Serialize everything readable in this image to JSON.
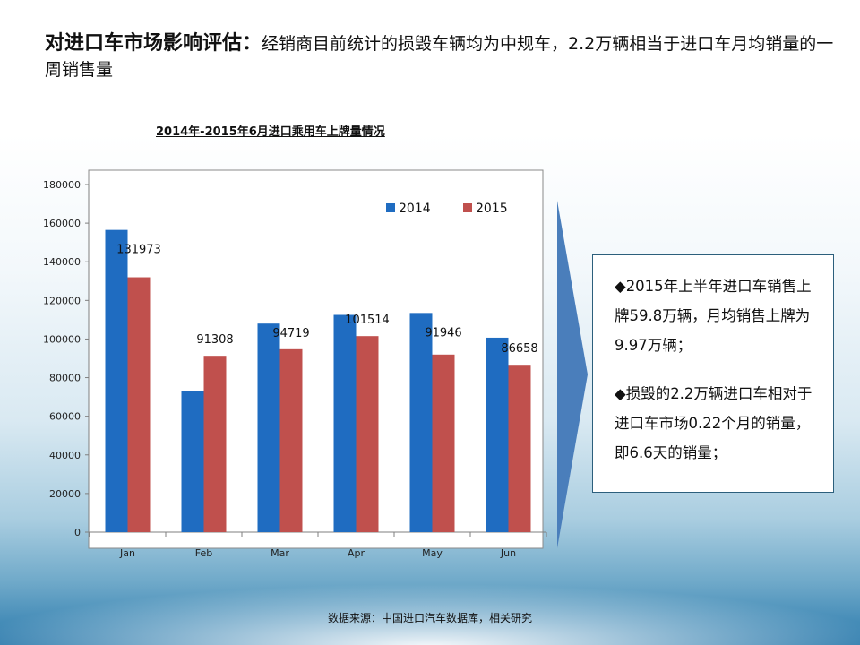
{
  "header": {
    "title_bold": "对进口车市场影响评估：",
    "title_rest": "经销商目前统计的损毁车辆均为中规车，2.2万辆相当于进口车月均销量的一周销售量"
  },
  "chart_data": {
    "type": "bar",
    "title": "2014年-2015年6月进口乘用车上牌量情况",
    "categories": [
      "Jan",
      "Feb",
      "Mar",
      "Apr",
      "May",
      "Jun"
    ],
    "series": [
      {
        "name": "2014",
        "color": "#1f6cc1",
        "values": [
          156500,
          73000,
          108000,
          112500,
          113500,
          100700
        ]
      },
      {
        "name": "2015",
        "color": "#c0504d",
        "values": [
          131973,
          91308,
          94719,
          101514,
          91946,
          86658
        ]
      }
    ],
    "data_labels": [
      "131973",
      "91308",
      "94719",
      "101514",
      "91946",
      "86658"
    ],
    "ylim": [
      0,
      180000
    ],
    "yticks": [
      "0",
      "20000",
      "40000",
      "60000",
      "80000",
      "100000",
      "120000",
      "140000",
      "160000",
      "180000"
    ],
    "xlabel": "",
    "ylabel": "",
    "legend_position": "top-right",
    "grid": false
  },
  "textbox": {
    "p1": "◆2015年上半年进口车销售上牌59.8万辆，月均销售上牌为9.97万辆；",
    "p2": "◆损毁的2.2万辆进口车相对于进口车市场0.22个月的销量，即6.6天的销量；"
  },
  "source": "数据来源：中国进口汽车数据库，相关研究",
  "colors": {
    "arrow": "#4a7ebb",
    "accent_border": "#2c5f7c"
  }
}
